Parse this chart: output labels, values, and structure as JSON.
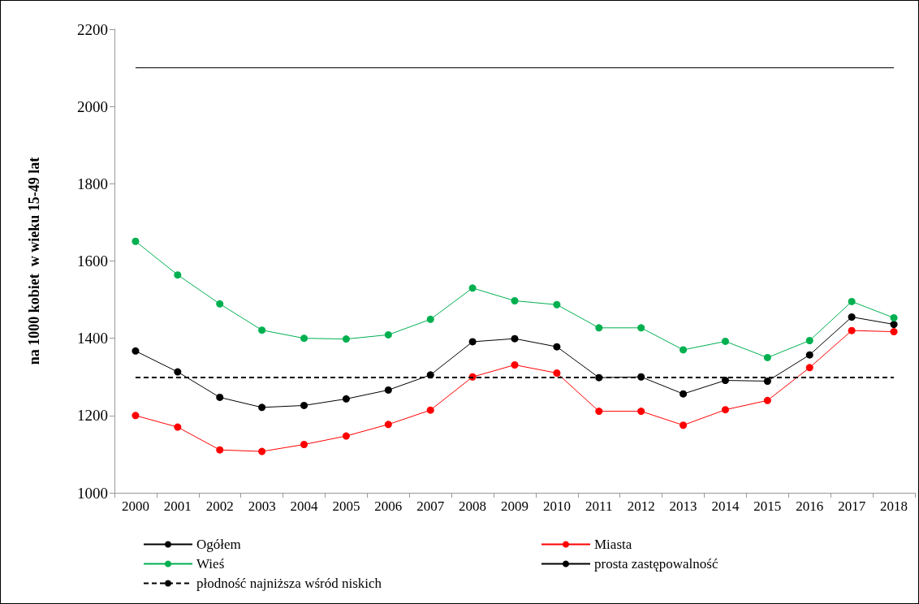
{
  "chart_data": {
    "type": "line",
    "ylabel": "na 1000 kobiet  w wieku 15-49 lat",
    "categories": [
      "2000",
      "2001",
      "2002",
      "2003",
      "2004",
      "2005",
      "2006",
      "2007",
      "2008",
      "2009",
      "2010",
      "2011",
      "2012",
      "2013",
      "2014",
      "2015",
      "2016",
      "2017",
      "2018"
    ],
    "series": [
      {
        "name": "Ogółem",
        "color": "#000000",
        "values": [
          1367,
          1313,
          1247,
          1221,
          1226,
          1243,
          1266,
          1305,
          1391,
          1399,
          1378,
          1298,
          1300,
          1256,
          1291,
          1289,
          1357,
          1455,
          1436
        ]
      },
      {
        "name": "Miasta",
        "color": "#ff0000",
        "values": [
          1200,
          1170,
          1111,
          1107,
          1125,
          1147,
          1177,
          1214,
          1300,
          1331,
          1310,
          1211,
          1211,
          1175,
          1215,
          1239,
          1324,
          1420,
          1417
        ]
      },
      {
        "name": "Wieś",
        "color": "#00b050",
        "values": [
          1651,
          1564,
          1489,
          1421,
          1400,
          1398,
          1409,
          1449,
          1530,
          1497,
          1487,
          1427,
          1427,
          1370,
          1392,
          1350,
          1394,
          1495,
          1453
        ]
      }
    ],
    "ref_lines": [
      {
        "axis": "y",
        "value": 2100,
        "label": "prosta zastępowalność",
        "color": "#000000",
        "line_style": "solid"
      },
      {
        "axis": "y",
        "value": 1300,
        "label": "płodność najniższa wśród niskich",
        "color": "#000000",
        "line_style": "dashed"
      }
    ],
    "ylim": [
      1000,
      2200
    ],
    "yticks": [
      1000,
      1200,
      1400,
      1600,
      1800,
      2000,
      2200
    ],
    "grid": false,
    "legend": "bottom",
    "marker": "circle",
    "line_style": "solid"
  }
}
